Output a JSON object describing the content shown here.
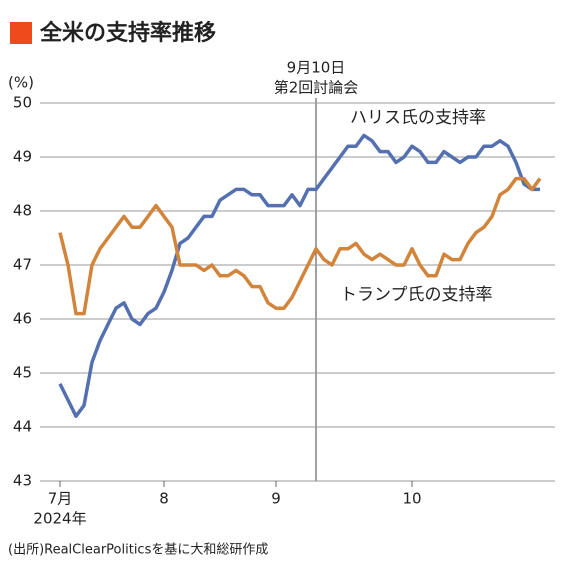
{
  "chart_data": {
    "type": "line",
    "title": "全米の支持率推移",
    "y_unit": "(%)",
    "x_note": "2024年",
    "annotation": [
      "9月10日",
      "第2回討論会"
    ],
    "source": "(出所)RealClearPoliticsを基に大和総研作成",
    "categories": [
      "7月",
      null,
      null,
      null,
      null,
      null,
      null,
      null,
      null,
      null,
      null,
      null,
      null,
      "8",
      null,
      null,
      null,
      null,
      null,
      null,
      null,
      null,
      null,
      null,
      null,
      null,
      null,
      "9",
      null,
      null,
      null,
      null,
      null,
      null,
      null,
      null,
      null,
      null,
      null,
      null,
      null,
      null,
      null,
      null,
      "10",
      null,
      null,
      null,
      null,
      null,
      null,
      null,
      null,
      null,
      null,
      null,
      null,
      null,
      null,
      null,
      null
    ],
    "series": [
      {
        "name": "ハリス氏の支持率",
        "color": "#5470b0",
        "values": [
          44.8,
          44.5,
          44.2,
          44.4,
          45.2,
          45.6,
          45.9,
          46.2,
          46.3,
          46.0,
          45.9,
          46.1,
          46.2,
          46.5,
          46.9,
          47.4,
          47.5,
          47.7,
          47.9,
          47.9,
          48.2,
          48.3,
          48.4,
          48.4,
          48.3,
          48.3,
          48.1,
          48.1,
          48.1,
          48.3,
          48.1,
          48.4,
          48.4,
          48.6,
          48.8,
          49.0,
          49.2,
          49.2,
          49.4,
          49.3,
          49.1,
          49.1,
          48.9,
          49.0,
          49.2,
          49.1,
          48.9,
          48.9,
          49.1,
          49.0,
          48.9,
          49.0,
          49.0,
          49.2,
          49.2,
          49.3,
          49.2,
          48.9,
          48.5,
          48.4,
          48.4
        ]
      },
      {
        "name": "トランプ氏の支持率",
        "color": "#d2843a",
        "values": [
          47.6,
          47.0,
          46.1,
          46.1,
          47.0,
          47.3,
          47.5,
          47.7,
          47.9,
          47.7,
          47.7,
          47.9,
          48.1,
          47.9,
          47.7,
          47.0,
          47.0,
          47.0,
          46.9,
          47.0,
          46.8,
          46.8,
          46.9,
          46.8,
          46.6,
          46.6,
          46.3,
          46.2,
          46.2,
          46.4,
          46.7,
          47.0,
          47.3,
          47.1,
          47.0,
          47.3,
          47.3,
          47.4,
          47.2,
          47.1,
          47.2,
          47.1,
          47.0,
          47.0,
          47.3,
          47.0,
          46.8,
          46.8,
          47.2,
          47.1,
          47.1,
          47.4,
          47.6,
          47.7,
          47.9,
          48.3,
          48.4,
          48.6,
          48.6,
          48.4,
          48.6
        ]
      }
    ],
    "ylim": [
      43,
      50
    ],
    "yticks": [
      43,
      44,
      45,
      46,
      47,
      48,
      49,
      50
    ],
    "grid": true
  }
}
